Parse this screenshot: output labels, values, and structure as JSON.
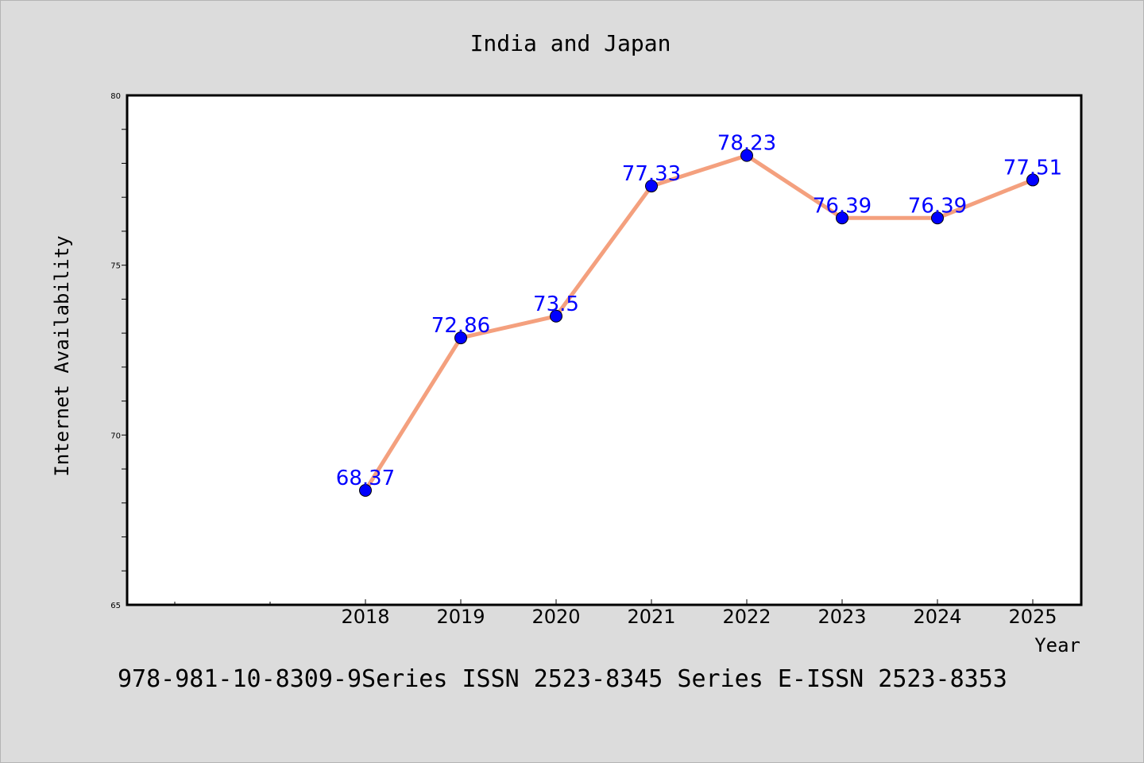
{
  "chart_data": {
    "type": "line",
    "title": "India and Japan",
    "xlabel": "Year",
    "ylabel": "Internet Availability",
    "footer": "978-981-10-8309-9Series ISSN 2523-8345 Series E-ISSN 2523-8353",
    "categories": [
      "2018",
      "2019",
      "2020",
      "2021",
      "2022",
      "2023",
      "2024",
      "2025"
    ],
    "series": [
      {
        "values": [
          68.37,
          72.86,
          73.5,
          77.33,
          78.23,
          76.39,
          76.39,
          77.51
        ],
        "labels": [
          "68.37",
          "72.86",
          "73.5",
          "77.33",
          "78.23",
          "76.39",
          "76.39",
          "77.51"
        ]
      }
    ],
    "ylim": [
      65,
      80
    ],
    "yticks": [
      "65",
      "70",
      "75",
      "80"
    ],
    "grid": false,
    "legend": "none",
    "colors": {
      "background": "#dcdcdc",
      "plot": "#ffffff",
      "line": "#f4a07e",
      "marker": "#0000ff",
      "data_label": "#0000ff",
      "text": "#000000"
    }
  }
}
